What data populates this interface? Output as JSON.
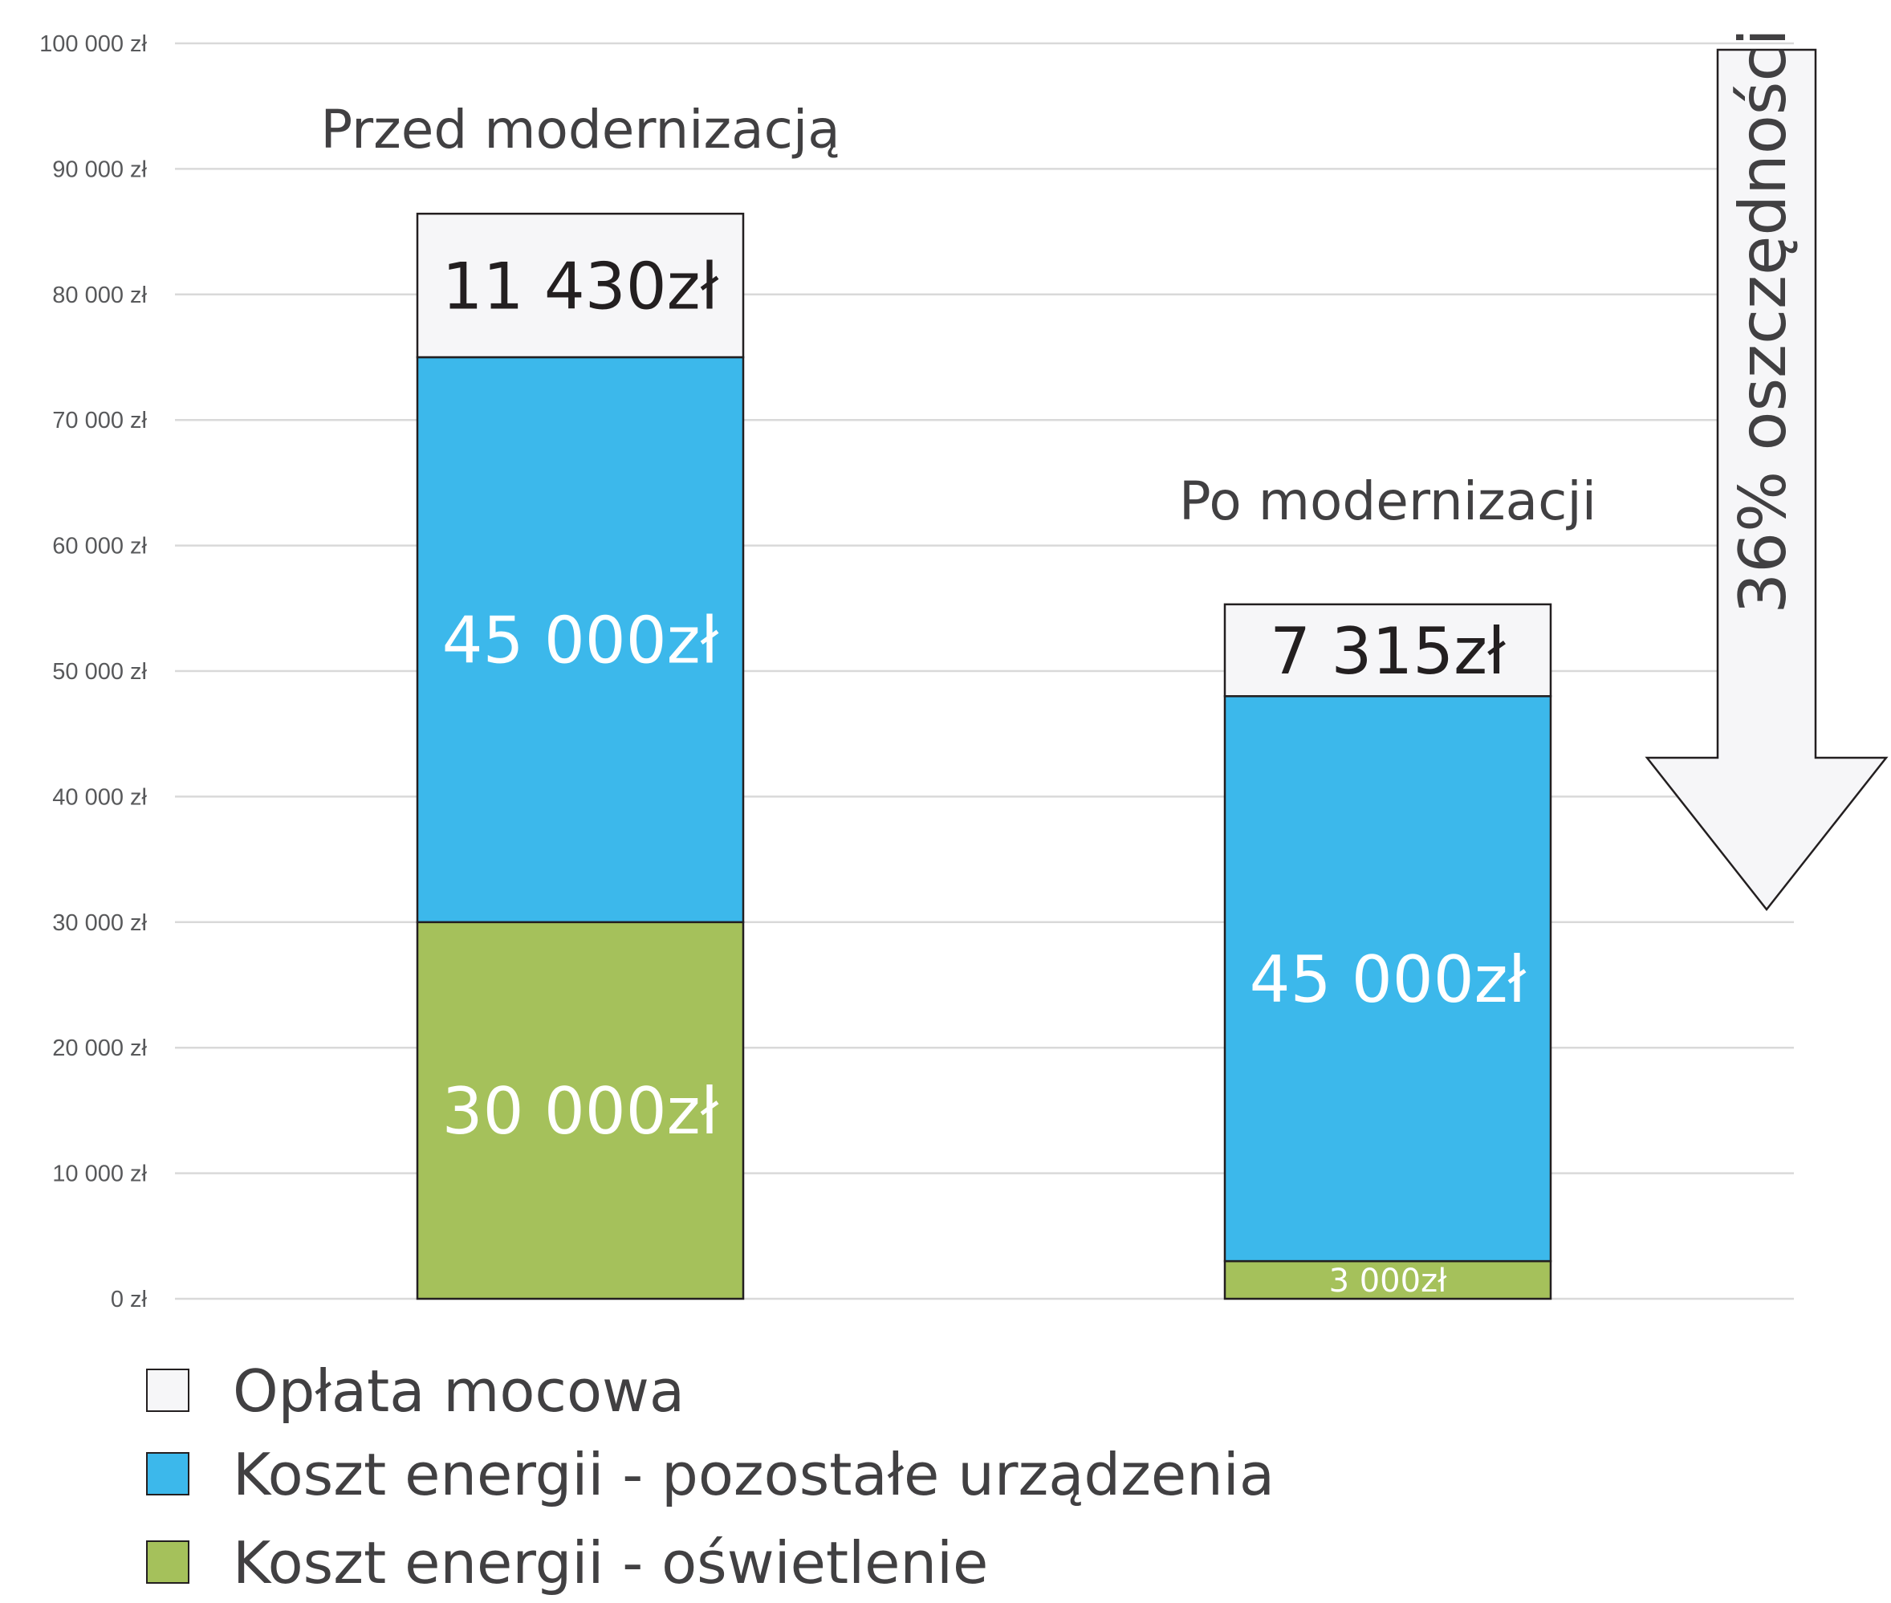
{
  "chart_data": {
    "type": "bar",
    "stacked": true,
    "categories": [
      "Przed modernizacją",
      "Po modernizacji"
    ],
    "series": [
      {
        "name": "Koszt energii - oświetlenie",
        "values": [
          30000,
          3000
        ],
        "labels": [
          "30 000zł",
          "3 000zł"
        ],
        "color": "#a5c15b",
        "label_color": "#ffffff"
      },
      {
        "name": "Koszt energii - pozostałe urządzenia",
        "values": [
          45000,
          45000
        ],
        "labels": [
          "45 000zł",
          "45 000zł"
        ],
        "color": "#3cb8eb",
        "label_color": "#ffffff"
      },
      {
        "name": "Opłata mocowa",
        "values": [
          11430,
          7315
        ],
        "labels": [
          "11 430zł",
          "7 315zł"
        ],
        "color": "#f6f6f8",
        "label_color": "#231f20"
      }
    ],
    "legend_order": [
      "Opłata mocowa",
      "Koszt energii - pozostałe urządzenia",
      "Koszt energii - oświetlenie"
    ],
    "legend_placement": "bottom-left",
    "y_ticks": [
      "0 zł",
      "10 000 zł",
      "20 000 zł",
      "30 000 zł",
      "40 000 zł",
      "50 000 zł",
      "60 000 zł",
      "70 000 zł",
      "80 000 zł",
      "90 000 zł",
      "100 000 zł"
    ],
    "ylim": [
      0,
      100000
    ],
    "grid": true,
    "annotation": "36% oszczędności",
    "gridline_color": "#d9d9d9"
  }
}
